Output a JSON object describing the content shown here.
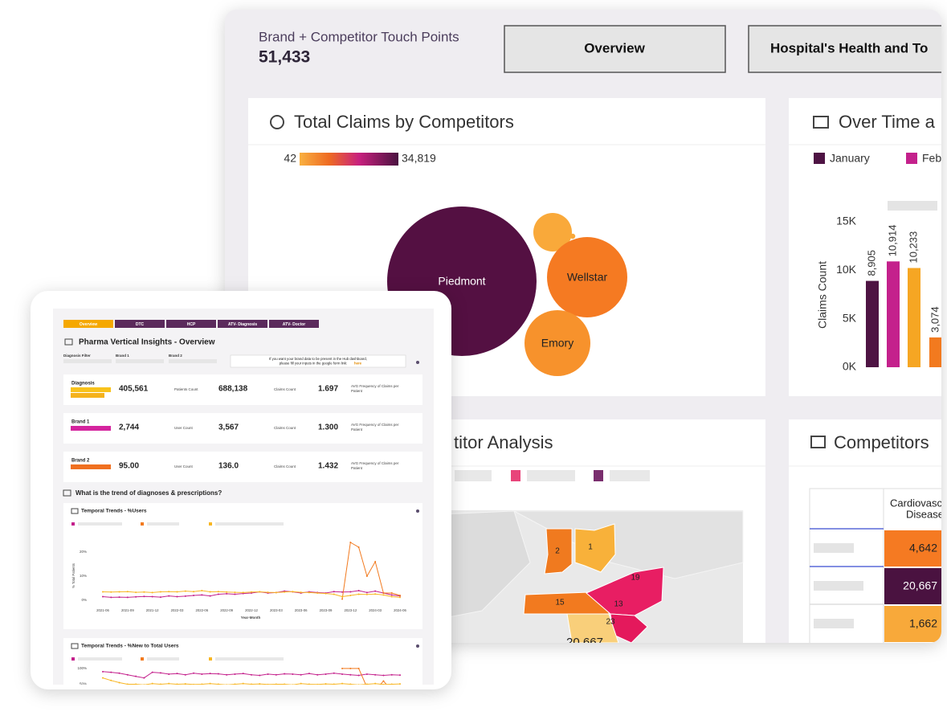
{
  "header": {
    "title": "Brand + Competitor Touch Points",
    "value": "51,433",
    "tabs": [
      "Overview",
      "Hospital's Health and To"
    ]
  },
  "map_panel": {
    "title": "titor Analysis",
    "labels": [
      "2",
      "1",
      "15",
      "19",
      "13",
      "23",
      "20,667"
    ]
  },
  "competitors_panel": {
    "title": "Competitors",
    "column": [
      "Cardiovasc",
      "Disease"
    ],
    "values": [
      "4,642",
      "20,667",
      "1,662"
    ]
  },
  "tablet": {
    "tabs": [
      "Overview",
      "DTC",
      "HCP",
      "ATV- Diagnosis",
      "ATV- Doctor"
    ],
    "title": "Pharma Vertical Insights - Overview",
    "filters": [
      "Diagnosis Filter",
      "Brand 1",
      "Brand 2"
    ],
    "note": [
      "If you want your brand data to be present in the Hub dashboard,",
      "please fill your inputs in the google form link:"
    ],
    "note_link": "here",
    "rows": [
      {
        "label": "Diagnosis",
        "value1": "405,561",
        "label1": "Patients Count",
        "value2": "688,138",
        "label2": "Claims Count",
        "value3": "1.697",
        "label3": [
          "AVG Frequency of Claims per",
          "Patient"
        ]
      },
      {
        "label": "Brand 1",
        "value1": "2,744",
        "label1": "User Count",
        "value2": "3,567",
        "label2": "Claims Count",
        "value3": "1.300",
        "label3": [
          "AVG Frequency of Claims per",
          "Patient"
        ]
      },
      {
        "label": "Brand 2",
        "value1": "95.00",
        "label1": "User Count",
        "value2": "136.0",
        "label2": "Claims Count",
        "value3": "1.432",
        "label3": [
          "AVG Frequency of Claims per",
          "Patient"
        ]
      }
    ],
    "question": "What is the trend of diagnoses & prescriptions?"
  },
  "chart_data": [
    {
      "type": "bubble",
      "title": "Total Claims by Competitors",
      "colorbar": [
        42,
        {
          "value": 34819,
          "label": "34,819"
        }
      ],
      "labels": [
        "Piedmont",
        null,
        null,
        "Wellstar",
        "Emory"
      ],
      "values": [
        34819,
        2320,
        42,
        10060,
        6770
      ],
      "colors": [
        "#541042",
        "#f9a93a",
        "#f9a93a",
        "#f57a22",
        "#f7922c"
      ]
    },
    {
      "type": "bar",
      "title": "Over Time a",
      "ylabel": "Claims Count",
      "ylim": [
        0,
        15000
      ],
      "yticks": [
        {
          "value": 0,
          "label": "0K"
        },
        {
          "value": 5000,
          "label": "5K"
        },
        {
          "value": 10000,
          "label": "10K"
        },
        {
          "value": 15000,
          "label": "15K"
        }
      ],
      "series": [
        {
          "name": "January",
          "color": "#4e1343",
          "values": [
            8905
          ],
          "value_labels": [
            "8,905"
          ]
        },
        {
          "name": "Feb",
          "color": "#c4218c",
          "values": [
            10914
          ],
          "value_labels": [
            "10,914"
          ]
        },
        {
          "color": "#f6a623",
          "values": [
            10233
          ],
          "value_labels": [
            "10,233"
          ]
        },
        {
          "color": "#f27a1f",
          "values": [
            3074
          ],
          "value_labels": [
            "3,074"
          ]
        }
      ]
    },
    {
      "type": "line",
      "title": "Temporal Trends - %Users",
      "ylabel": "% Total Patients",
      "xlabel": "Year-Month",
      "categories": [
        "2021-06",
        null,
        null,
        "2021-09",
        null,
        null,
        "2021-12",
        null,
        null,
        "2022-03",
        null,
        null,
        "2022-06",
        null,
        null,
        "2022-09",
        null,
        null,
        "2022-12",
        null,
        null,
        "2023-03",
        null,
        null,
        "2023-06",
        null,
        null,
        "2023-09",
        null,
        null,
        "2023-12",
        null,
        null,
        "2024-03",
        null,
        null,
        "2024-06"
      ],
      "ylim": [
        0,
        27
      ],
      "yticks": [
        {
          "value": 0,
          "label": "0%"
        },
        {
          "value": 10,
          "label": "10%"
        },
        {
          "value": 20,
          "label": "20%"
        }
      ],
      "series": [
        {
          "color": "#c4218c",
          "values": [
            1.5,
            1.2,
            1.3,
            1.2,
            1.4,
            1.6,
            1.5,
            1.3,
            1.8,
            1.5,
            1.7,
            2.0,
            2.2,
            1.8,
            2.5,
            2.7,
            2.5,
            2.8,
            3.0,
            3.5,
            3.0,
            3.2,
            3.8,
            3.5,
            3.0,
            3.5,
            3.2,
            3.0,
            3.6,
            3.4,
            3.5,
            4.0,
            3.2,
            3.8,
            3.0,
            2.2,
            1.8
          ]
        },
        {
          "color": "#f27a1f",
          "values": [
            null,
            null,
            null,
            null,
            null,
            null,
            null,
            null,
            null,
            null,
            null,
            null,
            null,
            null,
            null,
            null,
            null,
            null,
            null,
            null,
            null,
            null,
            null,
            null,
            null,
            null,
            null,
            null,
            null,
            0.5,
            24,
            22,
            10,
            16,
            3,
            3,
            2
          ]
        },
        {
          "color": "#f8b623",
          "values": [
            3.5,
            3.4,
            3.5,
            3.6,
            3.3,
            3.4,
            3.2,
            3.5,
            3.6,
            3.5,
            3.8,
            3.6,
            4.0,
            3.5,
            3.6,
            3.4,
            3.3,
            3.2,
            3.4,
            3.5,
            3.3,
            3.2,
            3.4,
            3.6,
            3.3,
            3.2,
            3.0,
            2.8,
            2.5,
            1.5,
            2.0,
            2.5,
            2.4,
            2.6,
            2.2,
            1.5,
            1.2
          ]
        }
      ]
    },
    {
      "type": "line",
      "title": "Temporal Trends - %New to Total Users",
      "categories": [
        null,
        null,
        null,
        null,
        null,
        null,
        null,
        null,
        null,
        null,
        null,
        null,
        null,
        null,
        null,
        null,
        null,
        null,
        null,
        null,
        null,
        null,
        null,
        null,
        null,
        null,
        null,
        null,
        null,
        null,
        null,
        null,
        null,
        null,
        null,
        null,
        null
      ],
      "ylim": [
        0,
        110
      ],
      "yticks": [
        {
          "value": 50,
          "label": "50%"
        },
        {
          "value": 100,
          "label": "100%"
        }
      ],
      "series": [
        {
          "color": "#c4218c",
          "values": [
            90,
            88,
            85,
            80,
            75,
            70,
            88,
            86,
            82,
            84,
            80,
            85,
            82,
            84,
            83,
            80,
            82,
            84,
            80,
            78,
            82,
            80,
            83,
            82,
            80,
            84,
            80,
            82,
            85,
            82,
            80,
            78,
            82,
            80,
            78,
            80,
            79
          ]
        },
        {
          "color": "#f27a1f",
          "values": [
            null,
            null,
            null,
            null,
            null,
            null,
            null,
            null,
            null,
            null,
            null,
            null,
            null,
            null,
            null,
            null,
            null,
            null,
            null,
            null,
            null,
            null,
            null,
            null,
            null,
            null,
            null,
            null,
            null,
            100,
            100,
            100,
            40,
            30,
            60,
            30,
            20
          ]
        },
        {
          "color": "#f8b623",
          "values": [
            70,
            62,
            55,
            50,
            50,
            48,
            52,
            50,
            52,
            50,
            51,
            49,
            50,
            52,
            50,
            48,
            50,
            52,
            50,
            51,
            49,
            50,
            50,
            48,
            52,
            50,
            49,
            51,
            50,
            52,
            50,
            48,
            50,
            52,
            49,
            50,
            51
          ]
        }
      ]
    }
  ]
}
